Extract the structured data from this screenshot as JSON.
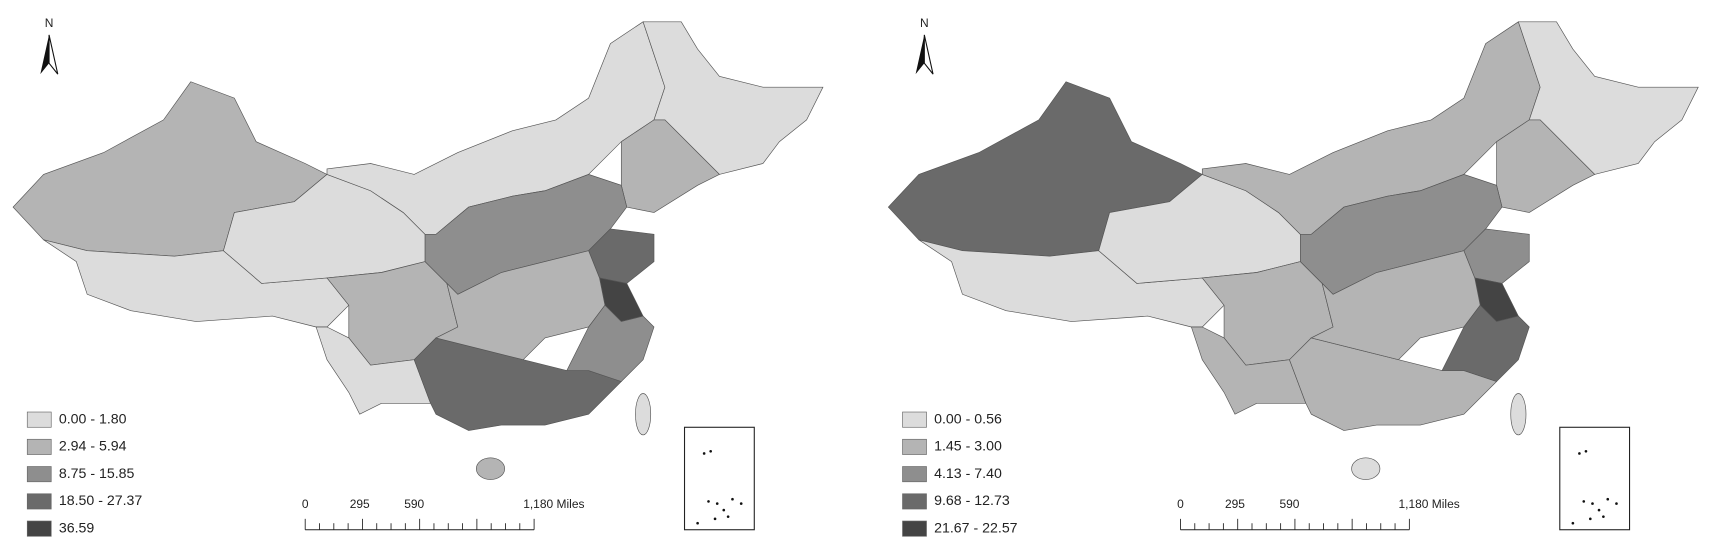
{
  "maps": [
    {
      "north": "N",
      "legend": [
        {
          "label": "0.00 - 1.80",
          "color": "#dcdcdc"
        },
        {
          "label": "2.94 - 5.94",
          "color": "#b4b4b4"
        },
        {
          "label": "8.75 - 15.85",
          "color": "#8e8e8e"
        },
        {
          "label": "18.50 - 27.37",
          "color": "#6a6a6a"
        },
        {
          "label": "36.59",
          "color": "#444444"
        }
      ],
      "scale_labels": [
        "0",
        "295",
        "590",
        "1,180 Miles"
      ]
    },
    {
      "north": "N",
      "legend": [
        {
          "label": "0.00 - 0.56",
          "color": "#dcdcdc"
        },
        {
          "label": "1.45 - 3.00",
          "color": "#b4b4b4"
        },
        {
          "label": "4.13 - 7.40",
          "color": "#8e8e8e"
        },
        {
          "label": "9.68 - 12.73",
          "color": "#6a6a6a"
        },
        {
          "label": "21.67 - 22.57",
          "color": "#444444"
        }
      ],
      "scale_labels": [
        "0",
        "295",
        "590",
        "1,180 Miles"
      ]
    }
  ]
}
